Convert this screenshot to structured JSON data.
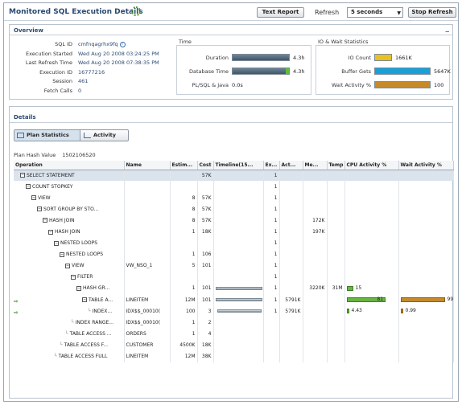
{
  "header": {
    "title": "Monitored SQL Execution Details",
    "text_report_label": "Text Report",
    "refresh_label": "Refresh",
    "refresh_interval": "5 seconds",
    "stop_refresh_label": "Stop Refresh"
  },
  "overview": {
    "title": "Overview",
    "collapse": "_",
    "fields": [
      {
        "label": "SQL ID",
        "value": "cmfnqagrhx9fq"
      },
      {
        "label": "Execution Started",
        "value": "Wed Aug 20 2008 03:24:25 PM"
      },
      {
        "label": "Last Refresh Time",
        "value": "Wed Aug 20 2008 07:38:35 PM"
      },
      {
        "label": "Execution ID",
        "value": "16777216"
      },
      {
        "label": "Session",
        "value": "461"
      },
      {
        "label": "Fetch Calls",
        "value": "0"
      }
    ],
    "time": {
      "title": "Time",
      "rows": [
        {
          "label": "Duration",
          "value": "4.3h",
          "fill": 1.0
        },
        {
          "label": "Database Time",
          "value": "4.3h",
          "fill": 1.0
        },
        {
          "label": "PL/SQL & Java",
          "value": "0.0s",
          "fill": 0
        }
      ]
    },
    "io": {
      "title": "IO & Wait Statistics",
      "rows": [
        {
          "label": "IO Count",
          "value": "1661K",
          "color": "#e8c020",
          "fill": 0.32
        },
        {
          "label": "Buffer Gets",
          "value": "5647K",
          "color": "#1aa0d8",
          "fill": 1.0
        },
        {
          "label": "Wait Activity %",
          "value": "100",
          "color": "#c58a2b",
          "fill": 1.0
        }
      ]
    }
  },
  "details": {
    "title": "Details",
    "tabs": [
      {
        "label": "Plan Statistics"
      },
      {
        "label": "Activity"
      }
    ],
    "plan_hash_label": "Plan Hash Value",
    "plan_hash_value": "1502106520",
    "columns": [
      "Operation",
      "Name",
      "Estim...",
      "Cost",
      "Timeline(15...",
      "Ex...",
      "Act...",
      "Me...",
      "Temp",
      "CPU Activity %",
      "Wait Activity %"
    ],
    "rows": [
      {
        "depth": 0,
        "op": "SELECT STATEMENT",
        "name": "",
        "est": "",
        "cost": "57K",
        "ex": "1",
        "act": "",
        "mem": "",
        "temp": "",
        "cpu": "",
        "wait": "",
        "sel": true
      },
      {
        "depth": 1,
        "op": "COUNT STOPKEY",
        "name": "",
        "est": "",
        "cost": "",
        "ex": "1",
        "act": "",
        "mem": "",
        "temp": "",
        "cpu": "",
        "wait": ""
      },
      {
        "depth": 2,
        "op": "VIEW",
        "name": "",
        "est": "8",
        "cost": "57K",
        "ex": "1",
        "act": "",
        "mem": "",
        "temp": "",
        "cpu": "",
        "wait": ""
      },
      {
        "depth": 3,
        "op": "SORT GROUP BY STO...",
        "name": "",
        "est": "8",
        "cost": "57K",
        "ex": "1",
        "act": "",
        "mem": "",
        "temp": "",
        "cpu": "",
        "wait": ""
      },
      {
        "depth": 4,
        "op": "HASH JOIN",
        "name": "",
        "est": "8",
        "cost": "57K",
        "ex": "1",
        "act": "",
        "mem": "172K",
        "temp": "",
        "cpu": "",
        "wait": ""
      },
      {
        "depth": 5,
        "op": "HASH JOIN",
        "name": "",
        "est": "1",
        "cost": "18K",
        "ex": "1",
        "act": "",
        "mem": "197K",
        "temp": "",
        "cpu": "",
        "wait": ""
      },
      {
        "depth": 6,
        "op": "NESTED LOOPS",
        "name": "",
        "est": "",
        "cost": "",
        "ex": "1",
        "act": "",
        "mem": "",
        "temp": "",
        "cpu": "",
        "wait": ""
      },
      {
        "depth": 7,
        "op": "NESTED LOOPS",
        "name": "",
        "est": "1",
        "cost": "106",
        "ex": "1",
        "act": "",
        "mem": "",
        "temp": "",
        "cpu": "",
        "wait": ""
      },
      {
        "depth": 8,
        "op": "VIEW",
        "name": "VW_NSO_1",
        "est": "5",
        "cost": "101",
        "ex": "1",
        "act": "",
        "mem": "",
        "temp": "",
        "cpu": "",
        "wait": ""
      },
      {
        "depth": 9,
        "op": "FILTER",
        "name": "",
        "est": "",
        "cost": "",
        "ex": "1",
        "act": "",
        "mem": "",
        "temp": "",
        "cpu": "",
        "wait": ""
      },
      {
        "depth": 10,
        "op": "HASH GR...",
        "name": "",
        "est": "1",
        "cost": "101",
        "ex": "1",
        "act": "",
        "mem": "3220K",
        "temp": "31M",
        "cpu": "15",
        "cpu_fill": 0.13,
        "wait": "",
        "timeline": [
          0,
          1
        ]
      },
      {
        "depth": 11,
        "op": "TABLE A...",
        "name": "LINEITEM",
        "est": "12M",
        "cost": "101",
        "ex": "1",
        "act": "5791K",
        "mem": "",
        "temp": "",
        "cpu": "81",
        "cpu_fill": 0.82,
        "wait": "99",
        "wait_fill": 0.99,
        "timeline": [
          0,
          1
        ],
        "active": true
      },
      {
        "depth": 12,
        "op": "INDEX...",
        "name": "IDX$$_00010(",
        "est": "100",
        "cost": "3",
        "ex": "1",
        "act": "5791K",
        "mem": "",
        "temp": "",
        "cpu": "4.43",
        "cpu_fill": 0.04,
        "wait": "0.99",
        "wait_fill": 0.01,
        "timeline": [
          0.05,
          1
        ],
        "active": true
      },
      {
        "depth": 9,
        "op": "INDEX RANGE...",
        "name": "IDX$$_00010(",
        "est": "1",
        "cost": "2",
        "ex": "",
        "act": "",
        "mem": "",
        "temp": "",
        "cpu": "",
        "wait": ""
      },
      {
        "depth": 8,
        "op": "TABLE ACCESS ...",
        "name": "ORDERS",
        "est": "1",
        "cost": "4",
        "ex": "",
        "act": "",
        "mem": "",
        "temp": "",
        "cpu": "",
        "wait": ""
      },
      {
        "depth": 7,
        "op": "TABLE ACCESS F...",
        "name": "CUSTOMER",
        "est": "4500K",
        "cost": "18K",
        "ex": "",
        "act": "",
        "mem": "",
        "temp": "",
        "cpu": "",
        "wait": ""
      },
      {
        "depth": 6,
        "op": "TABLE ACCESS FULL",
        "name": "LINEITEM",
        "est": "12M",
        "cost": "38K",
        "ex": "",
        "act": "",
        "mem": "",
        "temp": "",
        "cpu": "",
        "wait": ""
      }
    ]
  }
}
